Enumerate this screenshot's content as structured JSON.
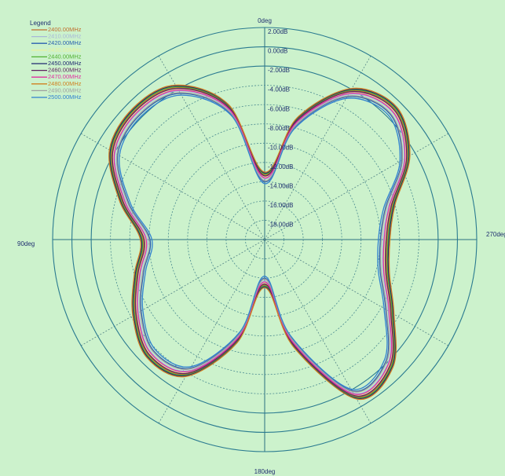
{
  "chart_data": {
    "type": "polar-line",
    "legend_title": "Legend",
    "legend": "top-left",
    "theta": [
      0,
      15,
      30,
      45,
      60,
      75,
      90,
      105,
      120,
      135,
      150,
      165,
      180,
      195,
      210,
      225,
      240,
      255,
      270,
      285,
      300,
      315,
      330,
      345
    ],
    "rlim": [
      -20,
      2
    ],
    "rticks": [
      {
        "value": 2,
        "label": "2.00dB"
      },
      {
        "value": 0,
        "label": "0.00dB"
      },
      {
        "value": -2,
        "label": "-2.00dB"
      },
      {
        "value": -4,
        "label": "-4.00dB"
      },
      {
        "value": -6,
        "label": "-6.00dB"
      },
      {
        "value": -8,
        "label": "-8.00dB"
      },
      {
        "value": -10,
        "label": "-10.00dB"
      },
      {
        "value": -12,
        "label": "-12.00dB"
      },
      {
        "value": -14,
        "label": "-14.00dB"
      },
      {
        "value": -16,
        "label": "-16.00dB"
      },
      {
        "value": -18,
        "label": "-18.00dB"
      }
    ],
    "thetagrid": [
      0,
      30,
      60,
      90,
      120,
      150,
      180,
      210,
      240,
      270,
      300,
      330
    ],
    "angle_ticks": [
      {
        "value": 0,
        "label": "0deg"
      },
      {
        "value": 90,
        "label": "90deg"
      },
      {
        "value": 180,
        "label": "180deg"
      },
      {
        "value": 270,
        "label": "270deg"
      }
    ],
    "series": [
      {
        "name": "2400.00MHz",
        "color": "#c07030",
        "values": [
          -13.3,
          -5.8,
          -1.8,
          -1.0,
          -1.7,
          -4.7,
          -7.4,
          -6.3,
          -4.5,
          -3.0,
          -3.9,
          -9.2,
          -15.3,
          -8.8,
          -1.2,
          -1.5,
          -4.8,
          -6.9,
          -7.3,
          -6.3,
          -2.9,
          -0.9,
          -2.2,
          -7.2
        ]
      },
      {
        "name": "2410.00MHz",
        "color": "#a8b8d8",
        "values": [
          -13.7,
          -6.2,
          -2.2,
          -1.4,
          -2.1,
          -5.1,
          -7.8,
          -6.7,
          -4.9,
          -3.4,
          -4.3,
          -9.6,
          -15.7,
          -9.2,
          -1.6,
          -1.9,
          -5.2,
          -7.3,
          -7.7,
          -6.7,
          -3.3,
          -1.3,
          -2.6,
          -7.6
        ]
      },
      {
        "name": "2420.00MHz",
        "color": "#2a60b0",
        "values": [
          -14.0,
          -6.5,
          -2.5,
          -1.7,
          -2.4,
          -5.4,
          -8.1,
          -7.0,
          -5.2,
          -3.7,
          -4.6,
          -9.9,
          -16.0,
          -9.5,
          -1.9,
          -2.2,
          -5.5,
          -7.6,
          -8.0,
          -7.0,
          -3.6,
          -1.6,
          -2.9,
          -7.9
        ]
      },
      {
        "name": "2430.00MHz",
        "color": "#e8f0a0",
        "values": [
          -13.5,
          -6,
          -2,
          -1.2,
          -1.9,
          -4.9,
          -7.6,
          -6.5,
          -4.7,
          -3.2,
          -4.1,
          -9.4,
          -15.5,
          -9,
          -1.4,
          -1.7,
          -5,
          -7.1,
          -7.5,
          -6.5,
          -3.1,
          -1.1,
          -2.4,
          -7.4
        ]
      },
      {
        "name": "2440.00MHz",
        "color": "#50b030",
        "values": [
          -13.2,
          -5.7,
          -1.7,
          -0.9,
          -1.6,
          -4.6,
          -7.3,
          -6.2,
          -4.4,
          -2.9,
          -3.8,
          -9.1,
          -15.2,
          -8.7,
          -1.1,
          -1.4,
          -4.7,
          -6.8,
          -7.2,
          -6.2,
          -2.8,
          -0.8,
          -2.1,
          -7.1
        ]
      },
      {
        "name": "2450.00MHz",
        "color": "#202a70",
        "values": [
          -13.1,
          -5.6,
          -1.6,
          -0.8,
          -1.5,
          -4.5,
          -7.2,
          -6.1,
          -4.3,
          -2.8,
          -3.7,
          -9.0,
          -15.1,
          -8.6,
          -1.0,
          -1.3,
          -4.6,
          -6.7,
          -7.1,
          -6.1,
          -2.7,
          -0.7,
          -2.0,
          -7.0
        ]
      },
      {
        "name": "2460.00MHz",
        "color": "#602060",
        "values": [
          -13.4,
          -5.9,
          -1.9,
          -1.1,
          -1.8,
          -4.8,
          -7.5,
          -6.4,
          -4.6,
          -3.1,
          -4.0,
          -9.3,
          -15.4,
          -8.9,
          -1.3,
          -1.6,
          -4.9,
          -7.0,
          -7.4,
          -6.4,
          -3.0,
          -1.0,
          -2.3,
          -7.3
        ]
      },
      {
        "name": "2470.00MHz",
        "color": "#e030a0",
        "values": [
          -13.6,
          -6.1,
          -2.1,
          -1.3,
          -2.0,
          -5.0,
          -7.7,
          -6.6,
          -4.8,
          -3.3,
          -4.2,
          -9.5,
          -15.6,
          -9.1,
          -1.5,
          -1.8,
          -5.1,
          -7.2,
          -7.6,
          -6.6,
          -3.2,
          -1.2,
          -2.5,
          -7.5
        ]
      },
      {
        "name": "2480.00MHz",
        "color": "#d08020",
        "values": [
          -13.0,
          -5.5,
          -1.5,
          -0.7,
          -1.4,
          -4.4,
          -7.1,
          -6.0,
          -4.2,
          -2.7,
          -3.6,
          -8.9,
          -15.0,
          -8.5,
          -0.9,
          -1.2,
          -4.5,
          -6.6,
          -7.0,
          -6.0,
          -2.6,
          -0.6,
          -1.9,
          -6.9
        ]
      },
      {
        "name": "2490.00MHz",
        "color": "#a0a0a0",
        "values": [
          -13.9,
          -6.4,
          -2.4,
          -1.6,
          -2.3,
          -5.3,
          -8.0,
          -6.9,
          -5.1,
          -3.6,
          -4.5,
          -9.8,
          -15.9,
          -9.4,
          -1.8,
          -2.1,
          -5.4,
          -7.5,
          -7.9,
          -6.9,
          -3.5,
          -1.5,
          -2.8,
          -7.8
        ]
      },
      {
        "name": "2500.00MHz",
        "color": "#3080d0",
        "values": [
          -14.2,
          -6.7,
          -2.7,
          -1.9,
          -2.6,
          -5.6,
          -8.3,
          -7.2,
          -5.4,
          -3.9,
          -4.8,
          -10.1,
          -16.2,
          -9.7,
          -2.1,
          -2.4,
          -5.7,
          -7.8,
          -8.2,
          -7.2,
          -3.8,
          -1.8,
          -3.1,
          -8.1
        ]
      }
    ]
  }
}
